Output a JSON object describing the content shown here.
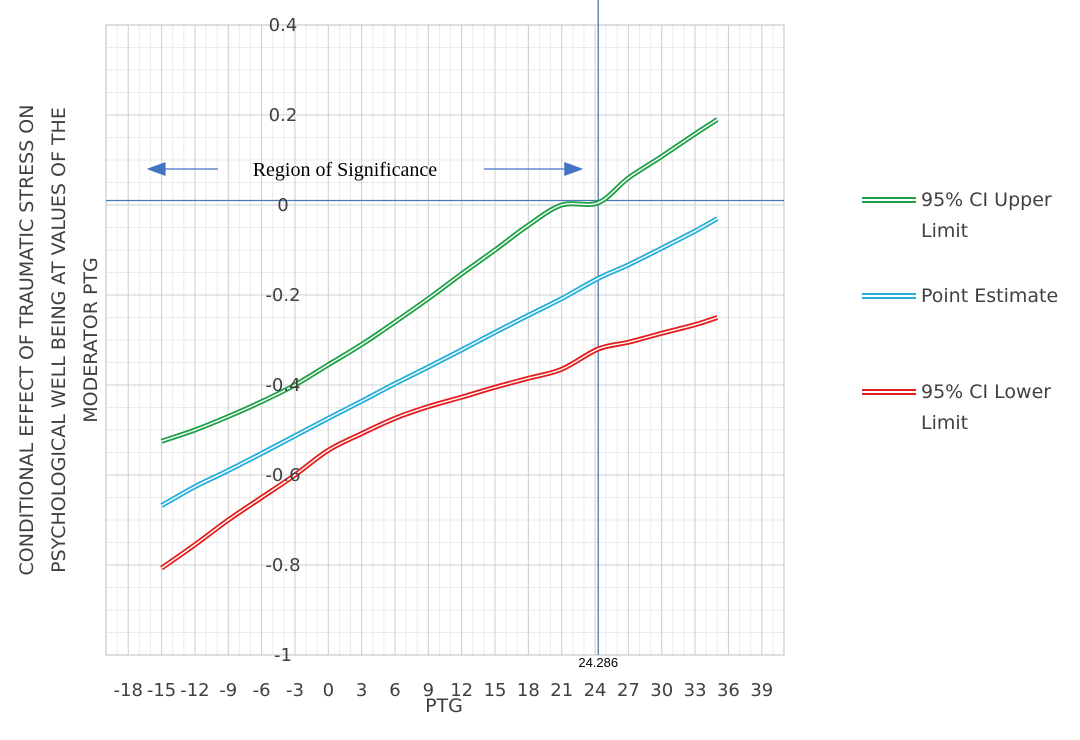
{
  "chart_data": {
    "type": "line",
    "title": "",
    "xlabel": "PTG",
    "ylabel_lines": [
      "CONDITIONAL EFFECT OF TRAUMATIC STRESS ON",
      "PSYCHOLOGICAL WELL BEING AT VALUES OF THE",
      "MODERATOR PTG"
    ],
    "xlim": [
      -20,
      41
    ],
    "ylim": [
      -1,
      0.4
    ],
    "xticks": [
      -18,
      -15,
      -12,
      -9,
      -6,
      -3,
      0,
      3,
      6,
      9,
      12,
      15,
      18,
      21,
      24,
      27,
      30,
      33,
      36,
      39
    ],
    "yticks": [
      0.4,
      0.2,
      0,
      -0.2,
      -0.4,
      -0.6,
      -0.8,
      -1
    ],
    "xtick_labels": [
      "-18",
      "-15",
      "-12",
      "-9",
      "-6",
      "-3",
      "0",
      "3",
      "6",
      "9",
      "12",
      "15",
      "18",
      "21",
      "24",
      "27",
      "30",
      "33",
      "36",
      "39"
    ],
    "ytick_labels": [
      "0.4",
      "0.2",
      "0",
      "-0.2",
      "-0.4",
      "-0.6",
      "-0.8",
      "-1"
    ],
    "grid": true,
    "legend_position": "right",
    "x": [
      -15,
      -12,
      -9,
      -6,
      -3,
      0,
      3,
      6,
      9,
      12,
      15,
      18,
      21,
      24.286,
      27,
      30,
      33,
      35
    ],
    "series": [
      {
        "name": "95% CI Upper Limit",
        "color": "#21a04a",
        "values": [
          -0.525,
          -0.5,
          -0.47,
          -0.437,
          -0.4,
          -0.355,
          -0.31,
          -0.26,
          -0.208,
          -0.153,
          -0.1,
          -0.045,
          0.0,
          0.005,
          0.06,
          0.108,
          0.158,
          0.19
        ]
      },
      {
        "name": "Point Estimate",
        "color": "#26aeda",
        "values": [
          -0.668,
          -0.626,
          -0.59,
          -0.552,
          -0.513,
          -0.474,
          -0.436,
          -0.397,
          -0.36,
          -0.322,
          -0.283,
          -0.245,
          -0.208,
          -0.163,
          -0.133,
          -0.096,
          -0.058,
          -0.03
        ]
      },
      {
        "name": "95% CI Lower Limit",
        "color": "#e41c1c",
        "values": [
          -0.807,
          -0.755,
          -0.7,
          -0.65,
          -0.6,
          -0.545,
          -0.508,
          -0.474,
          -0.448,
          -0.427,
          -0.405,
          -0.385,
          -0.365,
          -0.32,
          -0.305,
          -0.285,
          -0.266,
          -0.25
        ]
      }
    ],
    "reference_lines": {
      "vertical_x": 24.286,
      "horizontal_y": 0.01,
      "color": "#4a78b0"
    },
    "annotations": {
      "region_label": "Region of Significance",
      "region_from_x": -15,
      "region_to_x": 24.286,
      "region_y": 0.08,
      "arrow_color": "#4472c4",
      "crossover_label": "24.286"
    }
  }
}
